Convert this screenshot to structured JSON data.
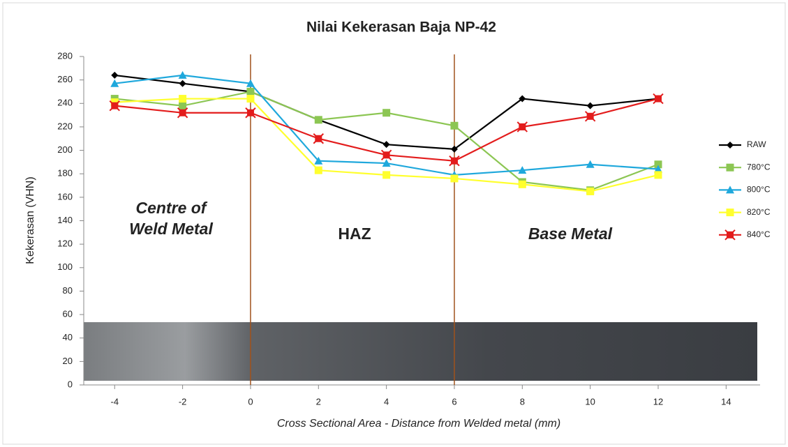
{
  "chart_data": {
    "type": "line",
    "title": "Nilai Kekerasan Baja NP-42",
    "x_label": "Cross Sectional Area - Distance from Welded metal  (mm)",
    "y_label": "Kekerasan (VHN)",
    "x": [
      -4,
      -2,
      0,
      2,
      4,
      6,
      8,
      10,
      12
    ],
    "series": [
      {
        "name": "RAW",
        "color": "#000000",
        "marker": "diamond",
        "values": [
          264,
          257,
          250,
          226,
          205,
          201,
          244,
          238,
          244
        ]
      },
      {
        "name": "780°C",
        "color": "#8cc653",
        "marker": "square",
        "values": [
          244,
          238,
          250,
          226,
          232,
          221,
          173,
          166,
          188
        ]
      },
      {
        "name": "800°C",
        "color": "#1fa8dc",
        "marker": "triangle",
        "values": [
          257,
          264,
          257,
          191,
          189,
          179,
          183,
          188,
          184
        ]
      },
      {
        "name": "820°C",
        "color": "#ffff2e",
        "marker": "square",
        "values": [
          241,
          244,
          244,
          183,
          179,
          176,
          171,
          165,
          179
        ]
      },
      {
        "name": "840°C",
        "color": "#e31c1c",
        "marker": "star-square",
        "values": [
          238,
          232,
          232,
          210,
          196,
          191,
          220,
          229,
          244
        ]
      }
    ],
    "xlim": [
      -5,
      15
    ],
    "xticks": [
      -4,
      -2,
      0,
      2,
      4,
      6,
      8,
      10,
      12,
      14
    ],
    "ylim": [
      0,
      280
    ],
    "yticks": [
      0,
      20,
      40,
      60,
      80,
      100,
      120,
      140,
      160,
      180,
      200,
      220,
      240,
      260,
      280
    ],
    "region_dividers": [
      0,
      6
    ],
    "divider_color": "#a0521c",
    "annotations": [
      [
        "Centre of",
        "Weld Metal"
      ],
      [
        "HAZ"
      ],
      [
        "Base Metal"
      ]
    ],
    "legend": "right"
  }
}
